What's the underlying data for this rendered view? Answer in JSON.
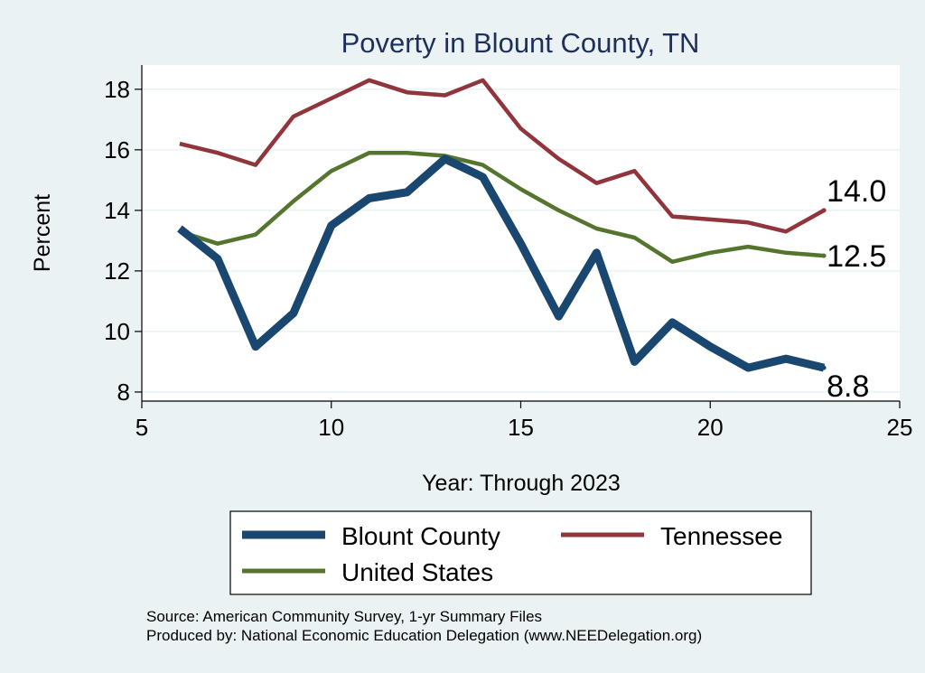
{
  "chart_data": {
    "type": "line",
    "title": "Poverty in Blount County, TN",
    "xlabel": "Year: Through 2023",
    "ylabel": "Percent",
    "xlim": [
      5,
      25
    ],
    "ylim": [
      7.7,
      18.8
    ],
    "xticks": [
      5,
      10,
      15,
      20,
      25
    ],
    "yticks": [
      8,
      10,
      12,
      14,
      16,
      18
    ],
    "x": [
      6,
      7,
      8,
      9,
      10,
      11,
      12,
      13,
      14,
      15,
      16,
      17,
      18,
      19,
      20,
      21,
      22,
      23
    ],
    "series": [
      {
        "name": "Blount County",
        "color": "#1a476f",
        "values": [
          13.4,
          12.4,
          9.5,
          10.6,
          13.5,
          14.4,
          14.6,
          15.7,
          15.1,
          12.9,
          10.5,
          12.6,
          9.0,
          10.3,
          9.5,
          8.8,
          9.1,
          8.8
        ],
        "end_label": "8.8"
      },
      {
        "name": "Tennessee",
        "color": "#90353b",
        "values": [
          16.2,
          15.9,
          15.5,
          17.1,
          17.7,
          18.3,
          17.9,
          17.8,
          18.3,
          16.7,
          15.7,
          14.9,
          15.3,
          13.8,
          13.7,
          13.6,
          13.3,
          14.0
        ],
        "end_label": "14.0"
      },
      {
        "name": "United States",
        "color": "#55752f",
        "values": [
          13.3,
          12.9,
          13.2,
          14.3,
          15.3,
          15.9,
          15.9,
          15.8,
          15.5,
          14.7,
          14.0,
          13.4,
          13.1,
          12.3,
          12.6,
          12.8,
          12.6,
          12.5
        ],
        "end_label": "12.5"
      }
    ],
    "legend": {
      "position": "bottom",
      "entries": [
        "Blount County",
        "Tennessee",
        "United States"
      ]
    },
    "grid": true,
    "background_color": "#eaf2f3",
    "title_color": "#1e2f5c"
  },
  "footer": {
    "source": "Source: American Community Survey, 1-yr Summary Files",
    "produced_by": "Produced by: National Economic Education Delegation (www.NEEDelegation.org)"
  }
}
